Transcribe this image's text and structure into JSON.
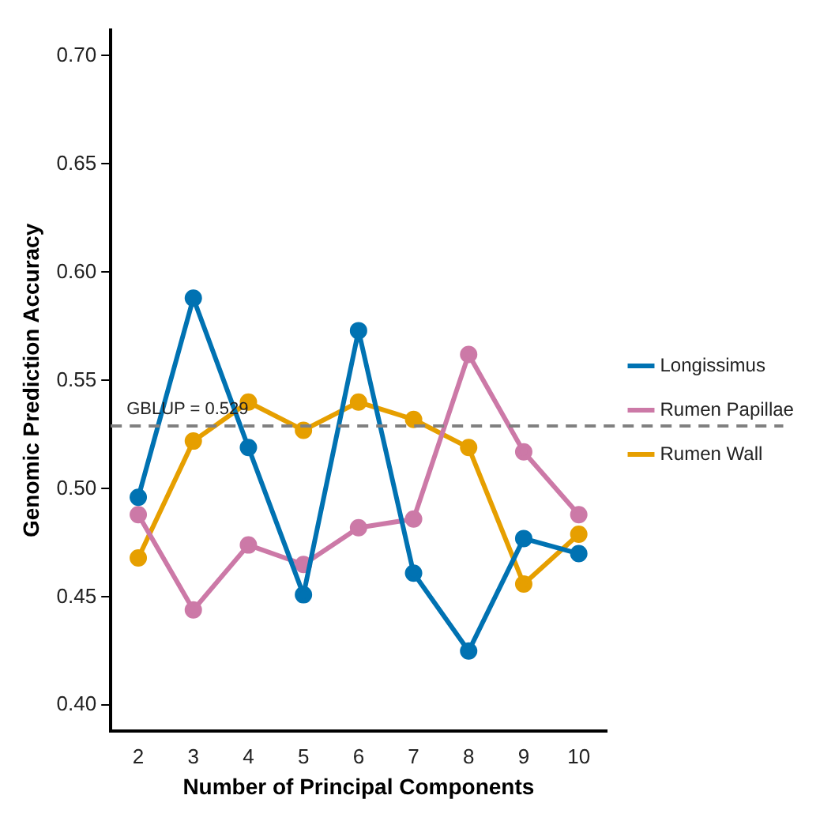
{
  "chart_data": {
    "type": "line",
    "xlabel": "Number of Principal Components",
    "ylabel": "Genomic Prediction Accuracy",
    "categories": [
      "2",
      "3",
      "4",
      "5",
      "6",
      "7",
      "8",
      "9",
      "10"
    ],
    "series": [
      {
        "name": "Longissimus",
        "color": "#0072b2",
        "values": [
          0.496,
          0.588,
          0.519,
          0.451,
          0.573,
          0.461,
          0.425,
          0.477,
          0.47
        ]
      },
      {
        "name": "Rumen Papillae",
        "color": "#cc79a7",
        "values": [
          0.488,
          0.444,
          0.474,
          0.465,
          0.482,
          0.486,
          0.562,
          0.517,
          0.488
        ]
      },
      {
        "name": "Rumen Wall",
        "color": "#e69f00",
        "values": [
          0.468,
          0.522,
          0.54,
          0.527,
          0.54,
          0.532,
          0.519,
          0.456,
          0.479
        ]
      }
    ],
    "ylim": [
      0.388,
      0.712
    ],
    "yticks": [
      {
        "value": 0.4,
        "label": "0.40"
      },
      {
        "value": 0.45,
        "label": "0.45"
      },
      {
        "value": 0.5,
        "label": "0.50"
      },
      {
        "value": 0.55,
        "label": "0.55"
      },
      {
        "value": 0.6,
        "label": "0.60"
      },
      {
        "value": 0.65,
        "label": "0.65"
      },
      {
        "value": 0.7,
        "label": "0.70"
      }
    ],
    "ref_lines": [
      {
        "axis": "y",
        "value": 0.529,
        "label": "GBLUP = 0.529",
        "color": "#808080",
        "line_style": "dashed"
      }
    ],
    "grid": false,
    "legend": "right",
    "marker": "circle",
    "line_style": "solid"
  }
}
